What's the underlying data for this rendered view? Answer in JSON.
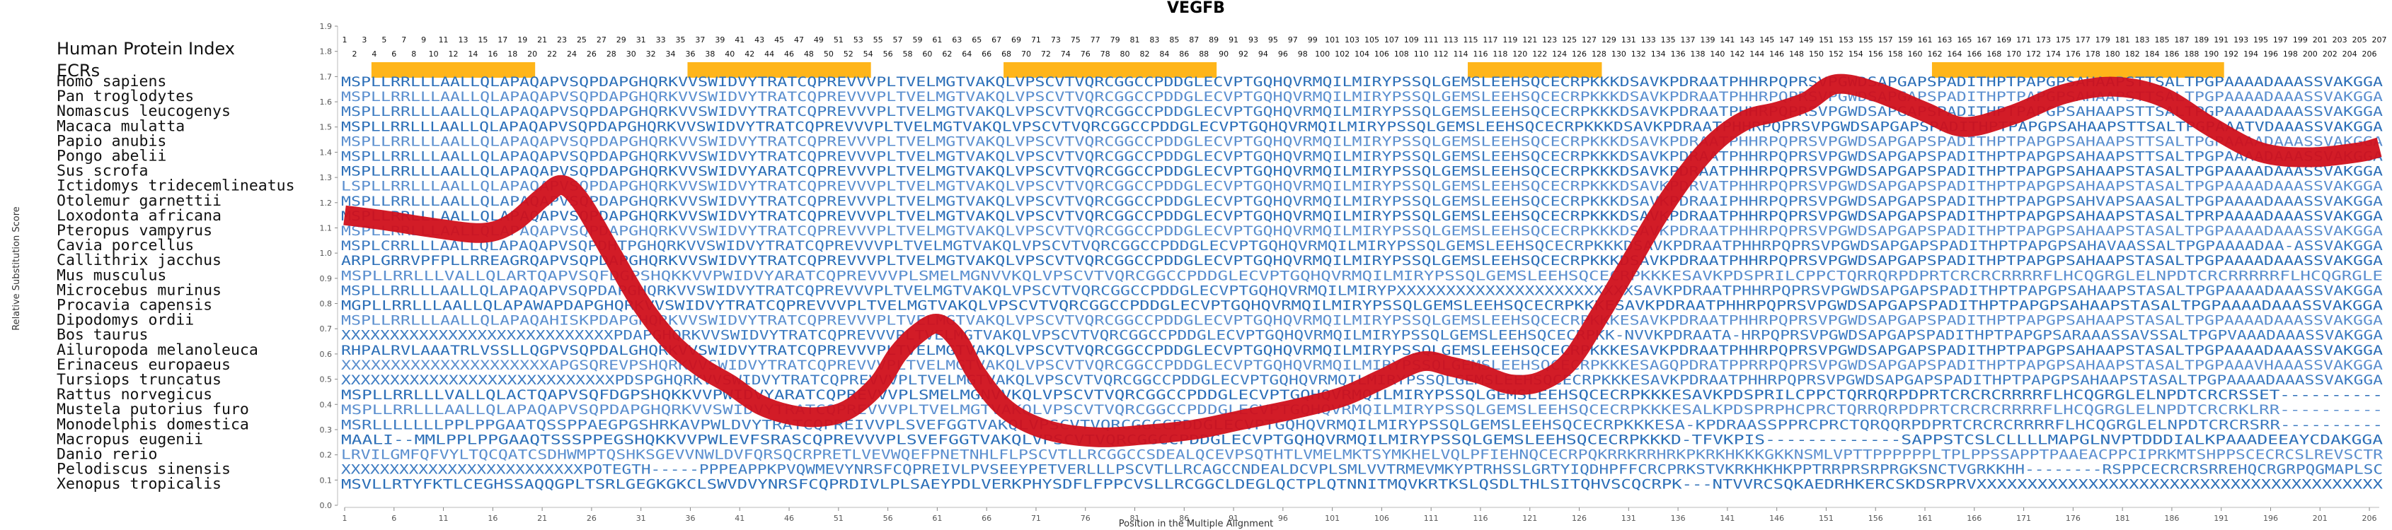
{
  "chart_data": {
    "type": "line",
    "title": "VEGFB",
    "xlabel": "Position in the Multiple Alignment",
    "ylabel": "Relative Substitution Score",
    "xlim": [
      1,
      207
    ],
    "ylim": [
      0.0,
      1.9
    ],
    "x_ticks": [
      1,
      6,
      11,
      16,
      21,
      26,
      31,
      36,
      41,
      46,
      51,
      56,
      61,
      66,
      71,
      76,
      81,
      86,
      91,
      96,
      101,
      106,
      111,
      116,
      121,
      126,
      131,
      136,
      141,
      146,
      151,
      156,
      161,
      166,
      171,
      176,
      181,
      186,
      191,
      196,
      201,
      206
    ],
    "y_ticks": [
      "0.0",
      "0.1",
      "0.2",
      "0.3",
      "0.4",
      "0.5",
      "0.6",
      "0.7",
      "0.8",
      "0.9",
      "1.0",
      "1.1",
      "1.2",
      "1.3",
      "1.4",
      "1.5",
      "1.6",
      "1.7",
      "1.8",
      "1.9"
    ],
    "header_label": "Human Protein Index",
    "ecr_label": "ECRs",
    "index_row1": [
      1,
      3,
      5,
      7,
      9,
      11,
      13,
      15,
      17,
      19,
      21,
      23,
      25,
      27,
      29,
      31,
      33,
      35,
      37,
      39,
      41,
      43,
      45,
      47,
      49,
      51,
      53,
      55,
      57,
      59,
      61,
      63,
      65,
      67,
      69,
      71,
      73,
      75,
      77,
      79,
      81,
      83,
      85,
      87,
      89,
      91,
      93,
      95,
      97,
      99,
      101,
      103,
      105,
      107,
      109,
      111,
      113,
      115,
      117,
      119,
      121,
      123,
      125,
      127,
      129,
      131,
      133,
      135,
      137,
      139,
      141,
      143,
      145,
      147,
      149,
      151,
      153,
      155,
      157,
      159,
      161,
      163,
      165,
      167,
      169,
      171,
      173,
      175,
      177,
      179,
      181,
      183,
      185,
      187,
      189,
      191,
      193,
      195,
      197,
      199,
      201,
      203,
      205,
      207
    ],
    "index_row2": [
      2,
      4,
      6,
      8,
      10,
      12,
      14,
      16,
      18,
      20,
      22,
      24,
      26,
      28,
      30,
      32,
      34,
      36,
      38,
      40,
      42,
      44,
      46,
      48,
      50,
      52,
      54,
      56,
      58,
      60,
      62,
      64,
      66,
      68,
      70,
      72,
      74,
      76,
      78,
      80,
      82,
      84,
      86,
      88,
      90,
      92,
      94,
      96,
      98,
      100,
      102,
      104,
      106,
      108,
      110,
      112,
      114,
      116,
      118,
      120,
      122,
      124,
      126,
      128,
      130,
      132,
      134,
      136,
      138,
      140,
      142,
      144,
      146,
      148,
      150,
      152,
      154,
      156,
      158,
      160,
      162,
      164,
      166,
      168,
      170,
      172,
      174,
      176,
      178,
      180,
      182,
      184,
      186,
      188,
      190,
      192,
      194,
      196,
      198,
      200,
      202,
      204,
      206
    ],
    "ecr_ranges": [
      [
        4,
        20
      ],
      [
        36,
        54
      ],
      [
        68,
        89
      ],
      [
        115,
        128
      ],
      [
        162,
        191
      ]
    ],
    "series": [
      {
        "values": [
          [
            1,
            1.15
          ],
          [
            5,
            1.13
          ],
          [
            10,
            1.1
          ],
          [
            15,
            1.08
          ],
          [
            18,
            1.12
          ],
          [
            21,
            1.22
          ],
          [
            23,
            1.27
          ],
          [
            25,
            1.2
          ],
          [
            28,
            1.0
          ],
          [
            31,
            0.8
          ],
          [
            34,
            0.65
          ],
          [
            37,
            0.55
          ],
          [
            40,
            0.48
          ],
          [
            43,
            0.4
          ],
          [
            46,
            0.36
          ],
          [
            49,
            0.35
          ],
          [
            52,
            0.38
          ],
          [
            55,
            0.48
          ],
          [
            57,
            0.6
          ],
          [
            59,
            0.68
          ],
          [
            61,
            0.72
          ],
          [
            63,
            0.66
          ],
          [
            65,
            0.52
          ],
          [
            68,
            0.38
          ],
          [
            72,
            0.3
          ],
          [
            77,
            0.27
          ],
          [
            82,
            0.28
          ],
          [
            87,
            0.3
          ],
          [
            92,
            0.34
          ],
          [
            97,
            0.38
          ],
          [
            102,
            0.43
          ],
          [
            106,
            0.5
          ],
          [
            110,
            0.57
          ],
          [
            113,
            0.55
          ],
          [
            116,
            0.52
          ],
          [
            119,
            0.48
          ],
          [
            122,
            0.49
          ],
          [
            125,
            0.57
          ],
          [
            128,
            0.75
          ],
          [
            131,
            0.95
          ],
          [
            134,
            1.15
          ],
          [
            137,
            1.32
          ],
          [
            140,
            1.45
          ],
          [
            143,
            1.53
          ],
          [
            146,
            1.56
          ],
          [
            149,
            1.6
          ],
          [
            152,
            1.67
          ],
          [
            156,
            1.64
          ],
          [
            161,
            1.56
          ],
          [
            165,
            1.5
          ],
          [
            170,
            1.55
          ],
          [
            175,
            1.63
          ],
          [
            180,
            1.66
          ],
          [
            185,
            1.62
          ],
          [
            190,
            1.5
          ],
          [
            195,
            1.4
          ],
          [
            200,
            1.38
          ],
          [
            205,
            1.4
          ],
          [
            207,
            1.42
          ]
        ]
      }
    ],
    "sequences": [
      {
        "name": "Homo sapiens",
        "seq": "MSPLLRRLLLAALLQLAPAQAPVSQPDAPGHQRKVVSWIDVYTRATCQPREVVVPLTVELMGTVAKQLVPSCVTVQRCGGCCPDDGLECVPTGQHQVRMQILMIRYPSSQLGEMSLEEHSQCECRPKKKDSAVKPDRAATPHHRPQPRSVPGWDSAPGAPSPADITHPTPAPGPSAHAAPSTTSALTPGPAAAADAAASSVAKGGA",
        "colors": []
      },
      {
        "name": "Pan troglodytes",
        "seq": "MSPLLRRLLLAALLQLAPAQAPVSQPDAPGHQRKVVSWIDVYTRATCQPREVVVPLTVELMGTVAKQLVPSCVTVQRCGGCCPDDGLECVPTGQHQVRMQILMIRYPSSQLGEMSLEEHSQCECRPKKKDSAVKPDRAATPHHRPQPRSVPGWDSAPGAPSPADITHPTPAPGPSAHAAPSTTSALTPGPAAAADAAASSVAKGGA",
        "colors": []
      },
      {
        "name": "Nomascus leucogenys",
        "seq": "MSPLLRRLLLAALLQLAPAQAPVSQPDAPGHQRKVVSWIDVYTRATCQPREVVVPLTVELMGTVAKQLVPSCVTVQRCGGCCPDDGLECVPTGQHQVRMQILMIRYPSSQLGEMSLEEHSQCECRPKKKDSAVKPDRAATPHHRPQPRSVPGWDSAPGAPSPADITHPTPAPGPSAHAAPSTTSALTPGPAAAADAAASSVAKGGA",
        "colors": []
      },
      {
        "name": "Macaca mulatta",
        "seq": "MSPLLRRLLLAALLQLAPAQAPVSQPDAPGHQRKVVSWIDVYTRATCQPREVVVPLTVELMGTVAKQLVPSCVTVQRCGGCCPDDGLECVPTGQHQVRMQILMIRYPSSQLGEMSLEEHSQCECRPKKKDSAVKPDRAATPHHRPQPRSVPGWDSAPGAPSPADITHPTPAPGPSAHAAPSTTSALTPGPAAATVDAAASSVAKGGA",
        "colors": []
      },
      {
        "name": "Papio anubis",
        "seq": "MSPLLRRLLLAALLQLAPAQAPVSQPDAPGHQRKVVSWIDVYTRATCQPREVVVPLTVELMGTVAKQLVPSCVTVQRCGGCCPDDGLECVPTGQHQVRMQILMIRYPSSQLGEMSLEEHSQCECRPKKKDSAVKPDRAATPHHRPQPRSVPGWDSAPGAPSPADITHPTPAPGPSAHAAPSTTSALTPGPAAAADAAASSVAKGGA",
        "colors": []
      },
      {
        "name": "Pongo abelii",
        "seq": "MSPLLRRLLLAALLQLAPAQAPVSQPDAPGHQRKVVSWIDVYTRATCQPREVVVPLTVELMGTVAKQLVPSCVTVQRCGGCCPDDGLECVPTGQHQVRMQILMIRYPSSQLGEMSLEEHSQCECRPKKKDSAVKPDRAATPHHRPQPRSVPGWDSAPGAPSPADITHPTPAPGPSAHAAPSTTSALTPGPAAAADAAASSVAKGGA",
        "colors": []
      },
      {
        "name": "Sus scrofa",
        "seq": "MSPLLRRLLLAALLQLAPAQAPVSQPDAPGHQRKVVSWIDVYARATCQPREVVVPLTVELMGTVAKQLVPSCVTVQRCGGCCPDDGLECVPTGQHQVRMQILMIRYPSSQLGEMSLEEHSQCECRPKKKDSAVKPDRAATPHHRPQPRSVPGWDSAPGAPSPADITHPTPAPGPSAHAAPSTASALTPGPAAAADAAASSVAKGGA",
        "colors": []
      },
      {
        "name": "Ictidomys tridecemlineatus",
        "seq": "LSPLLRRLLLAALLQLAPAQAPVSQPDAPGHQRKVVSWIDVYTRATCQPREVVVPLTVELMGTVAKQLVPSCVTVQRCGGCCPDDGLECVPTGQHQVRMQILMIRYPSSQLGEMSLEEHSQCECRPKKKDSAVKPDRVATPHHRPQPRSVPGWDSAPGAPSPADITHPTPAPGPSAHAAPSTASALTPGPAAAADAAASSVAKGGA",
        "colors": []
      },
      {
        "name": "Otolemur garnettii",
        "seq": "MSPLLRRLLLAALLQLAPAQAPVSQPDAPGHQRKVVSWIDVYTRATCQPREVVVPLTVELMGTVAKQLVPSCVTVQRCGGCCPDDGLECVPTGQHQVRMQILMIRYPSSQLGEMSLEEHSQCECRPKKKDSAVKPDRAAIPHHRPQPRSVPGWDSAPGAPSPADITHPTPAPGPSAHVAPSAASALTPGPAAAADAAASSVAKGGA",
        "colors": []
      },
      {
        "name": "Loxodonta africana",
        "seq": "MSPLLRRLLLAALLQLAPAQAPVSQPDAPGHQRKVVSWIDVYTRATCQPREVVVPLTVELMGTVAKQLVPSCVTVQRCGGCCPDDGLECVPTGQHQVRMQILMIRYPSSQLGEMSLEEHSQCECRPKKKDSAVKPDRAATPHHRPQPRSVPGWDSAPGAPSPADITHPTPAPGPSAHAAPSTASALTPRPAAAADAAASSVAKGGA",
        "colors": []
      },
      {
        "name": "Pteropus vampyrus",
        "seq": "MSPLLRRLLLAALLQLAPAQAPVSQPDAPGHQRKVVSWIDVYTRATCQPREVVVPLTVELMGTVAKQLVPSCVTVQRCGGCCPDDGLECVPTGQHQVRMQILMIRYPSSQLGEMSLEEHSQCECRPKKKDSAVKPDRAATPHHRPQPRSVPGWDSAPGAPSPADITHPTPAPGPSAHAAPSTASALTPGPAAAADAAASSVAKGGA",
        "colors": []
      },
      {
        "name": "Cavia porcellus",
        "seq": "MSPLCRRLLLAALLQLAPAQAPVSQPDHTPGHQRKVVSWIDVYTRATCQPREVVVPLTVELMGTVAKQLVPSCVTVQRCGGCCPDDGLECVPTGQHQVRMQILMIRYPSSQLGEMSLEEHSQCECRPKKKDSAVKPDRAATPHHRPQPRSVPGWDSAPGAPSPADITHPTPAPGPSAHAVAASSALTPGPAAAADAA-ASSVAKGGA",
        "colors": []
      },
      {
        "name": "Callithrix jacchus",
        "seq": "ARPLGRRVPFPLLRREAGRQAPVSQPDAPGHQRKVVSWIDVYTRATCQPREVVVPLTVELMGTVAKQLVPSCVTVQRCGGCCPDDGLECVPTGQHQVRMQILMIRYPSSQLGEMSLEEHSQCECRPKKKDSAVKPDRAATPHHRPQPRSVPGWDSAPGAPSPADITHPTPAPGPSAHAAPSTASALTPGPAAAADAAASSVAKGGA",
        "colors": []
      },
      {
        "name": "Mus musculus",
        "seq": "MSPLLRRLLLVALLQLARTQAPVSQFDGPSHQKKVVPWIDVYARATCQPREVVVPLSMELMGNVVKQLVPSCVTVQRCGGCCPDDGLECVPTGQHQVRMQILMIRYPSSQLGEMSLEEHSQCECRPKKKESAVKPDSPRILCPPCTQRRQRPDPRTCRCRCRRRRFLHCQGRGLELNPDTCRCRRRRRFLHCQGRGLE",
        "colors": []
      },
      {
        "name": "Microcebus murinus",
        "seq": "MSPLLRRLLLAALLQLAPAQAPVSQPDAPGHQRKVVSWIDVYTRATCQPREVVVPLTVELMGTVAKQLVPSCVTVQRCGGCCPDDGLECVPTGQHQVRMQILMIRYPXXXXXXXXXXXXXXXXXXXXXXXXSAVKPDRAATPHHRPQPRSVPGWDSAPGAPSPADITHPTPAPGPSAHAAPSTASALTPGPAAAADAAASSVAKGGA",
        "colors": []
      },
      {
        "name": "Procavia capensis",
        "seq": "MGPLLRRLLLAALLQLAPAWAPDAPGHQRKVVSWIDVYTRATCQPREVVVPLTVELMGTVAKQLVPSCVTVQRCGGCCPDDGLECVPTGQHQVRMQILMIRYPSSQLGEMSLEEHSQCECRPKKKESAVKPDRAATPHHRPQPRSVPGWDSAPGAPSPADITHPTPAPGPSAHAAPSTASALTPGPAAAADAAASSVAKGGA",
        "colors": []
      },
      {
        "name": "Dipodomys ordii",
        "seq": "MSPLLRRLLLAALLQLAPAQAHISKPDAPGHQRKVVSWIDVYTRATCQPREVVVPLTVELMGTVAKQLVPSCVTVQRCGGCCPDDGLECVPTGQHQVRMQILMIRYPSSQLGEMSLEEHSQCECRPKKKESAVKPDRAATPHHRPQPRSVPGWDSAPGAPSPADITHPTPAPGPSAHAAPSTASALTPGPAAAADAAASSVAKGGA",
        "colors": []
      },
      {
        "name": "Bos taurus",
        "seq": "XXXXXXXXXXXXXXXXXXXXXXXXXXXXPDAPGHQRKVVSWIDVYTRATCQPREVVVPLTVELMGTVAKQLVPSCVTVQRCGGCCPDDGLECVPTGQHQVRMQILMIRYPSSQLGEMSLEEHSQCECRPKK-NVVKPDRAATA-HRPQPRSVPGWDSAPGAPSPADITHPTPAPGPSARAAASSAVSSALTPGPVAAADAAASSVAKGGA",
        "colors": []
      },
      {
        "name": "Ailuropoda melanoleuca",
        "seq": "RHPALRVLAAATRLVSSLLQGPVSQPDALGHQRKVVSWIDVYTRATCQPREVVVPLTVELMGTVAKQLVPSCVTVQRCGGCCPDDGLECVPTGQHQVRMQILMIRYPSSQLGEMSLEEHSQCECRPKKKESAVKPDRAATPHHRPQPRSVPGWDSAPGAPSPADITHPTPAPGPSAHAAPSTASALTPGPAAAADAAASSVAKGGA",
        "colors": []
      },
      {
        "name": "Erinaceus europaeus",
        "seq": "XXXXXXXXXXXXXXXXXXXXXAPGSQREVPSHQRKVVSWIDVYTRATCQPREVVVPLTVELMGTVAKQLVPSCVTVQRCGGCCPDDGLECVPTGQHQVRMQILMIRYPSSQLGEMSLEEHSQCECRPKKKESAGQPDRATPPRRPQPRSVPGWDSAPGAPSPADITHPTPAPGPSAHAAPSTASALTPGPAAAVHAAASSVAKGGA",
        "colors": []
      },
      {
        "name": "Tursiops truncatus",
        "seq": "XXXXXXXXXXXXXXXXXXXXXXXXXXXXPDSPGHQRKVVSWIDVYTRATCQPREVVVPLTVELMGTVAKQLVPSCVTVQRCGGCCPDDGLECVPTGQHQVRMQILMIRYPSSQLGEMSLEEHSQCECRPKKKESAVKPDRAATPHHRPQPRSVPGWDSAPGAPSPADITHPTPAPGPSAHAAPSTASALTPGPAAAADAAASSVAKGGA",
        "colors": []
      },
      {
        "name": "Rattus norvegicus",
        "seq": "MSPLLRRLLLVALLQLACTQAPVSQFDGPSHQKKVVPWIDVYARATCQPREVVVPLSMELMGNVVKQLVPSCVTVQRCGGCCPDDGLECVPTGQHQVRMQILMIRYPSSQLGEMSLEEHSQCECRPKKKESAVKPDSPRILCPPCTQRRQRPDPRTCRCRCRRRRFLHCQGRGLELNPDTCRCRSSET----------",
        "colors": []
      },
      {
        "name": "Mustela putorius furo",
        "seq": "MSPLLRRLLLAALLQLAPAQAPVSQPDAPGHQRKVVSWIDVYTRATCQPREVVVPLTVELMGTVAKQLVPSCVTVQRCGGCCPDDGLECVPTGQHQVRMQILMIRYPSSQLGEMSLEEHSQCECRPKKKESALKPDSPRPHCPRCTQRRQRPDPRTCRCRCRRRRFLHCQGRGLELNPDTCRCRKLRR----------",
        "colors": []
      },
      {
        "name": "Monodelphis domestica",
        "seq": "MSRLLLLLLLPPLPPGAATQSSPPAEGPGSHRKAVPWLDVYTRATCQPREIVVPLSVEFGGTVAKQLVPSCVTVQRCGGCCPDDGLECVPTGQHQVRMQILMIRYPSSQLGEMSLEEHSQCECRPKKKESA-KPDRAASSPPRCPRCTQRQQRPDPRTCRCRCRRRRFLHCQGRGLELNPDTCRCRSRR----------",
        "colors": []
      },
      {
        "name": "Macropus eugenii",
        "seq": "MAALI--MMLPPLPPGAAQTSSSPPEGSHQKKVVPWLEVFSRASCQPREVVVPLSVEFGGTVAKQLVPSCVTVQRCGGCCPDDGLECVPTGQHQVRMQILMIRYPSSQLGEMSLEEHSQCECRPKKKD-TFVKPIS-------------SAPPSTCSLCLLLLMAPGLNVPTDDDIALKPAAADEEAYCDAKGGA",
        "colors": []
      },
      {
        "name": "Danio rerio",
        "seq": "LRVILGMFQFVYLTQCQATCSDHWMPTQSHKSGEVVNWLDVFQRSQCRPRETLVEVWQEFPNETNHLFLPSCVTLLRCGGCCSDEALQCEVPSQTHTLVMELMKTSYMKHELVQLPFIEHNQCECRPQKRRKRRHRKPKRKHKKKGKKNSMLVPTTPPPPPPLTPLPPSSAPPTPAAEACPPCIPRKMTSHPPSCECRCSLREVSCTR",
        "colors": []
      },
      {
        "name": "Pelodiscus sinensis",
        "seq": "XXXXXXXXXXXXXXXXXXXXXXXXXPOTEGTH-----PPPEAPPKPVQWMEVYNRSFCQPREIVLPVSEEYPETVERLLLPSCVTLLRCAGCCNDEALDCVPLSMLVVTRMEVMKYPTRHSSLGRTYIQDHPFFCRCPRKSTVKRKHKHKPPTRRPRSRPRGKSNCTVGRKKHH--------RSPPCECRCRSRREHQCRGRPQGMAPLSC",
        "colors": []
      },
      {
        "name": "Xenopus tropicalis",
        "seq": "MSVLLRTYFKTLCEGHSSAQQGPLTSRLGEGKGKCLSWVDVYNRSFCQPRDIVLPLSAEYPDLVERKPHYSDFLFPPCVSLLRCGGCLDEGLQCTPLQTNNITMQVKRTKSLQSDLTHLSITQHVSCQCRPK---NTVVRCSQKAEDRHKERCSKDSRPRVXXXXXXXXXXXXXXXXXXXXXXXXXXXXXXXXXXXXXXXX",
        "colors": []
      }
    ]
  }
}
